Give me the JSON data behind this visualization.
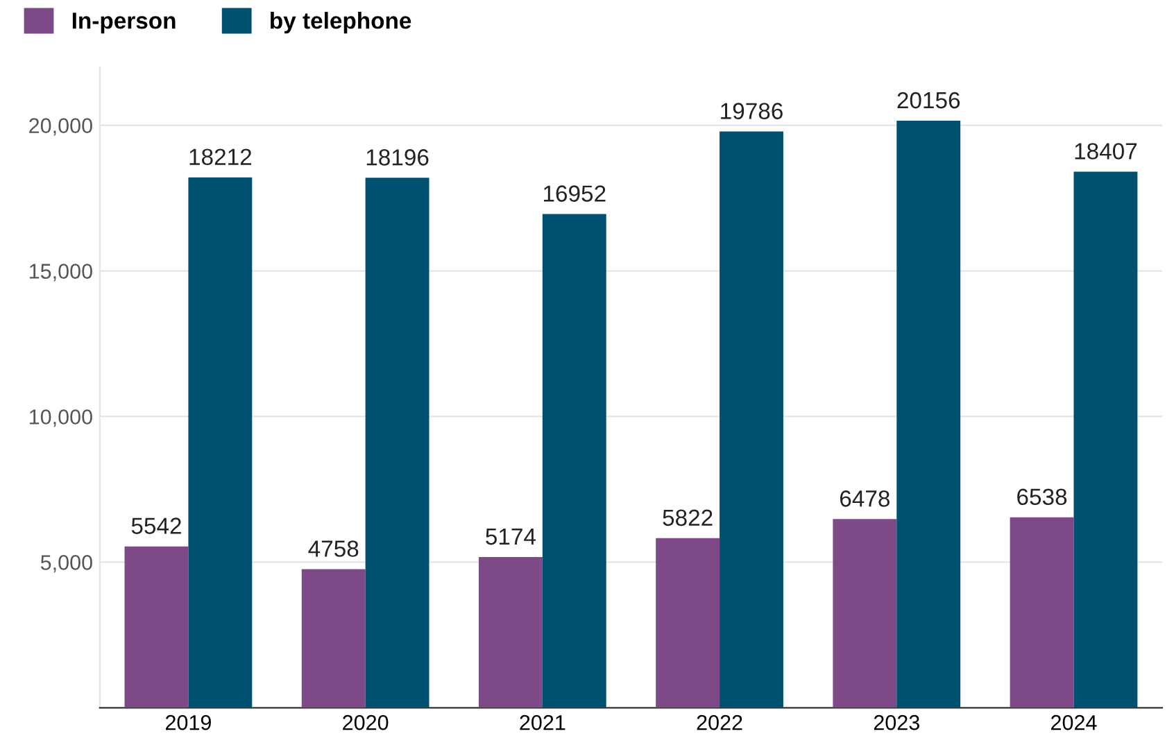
{
  "chart_data": {
    "type": "bar",
    "categories": [
      "2019",
      "2020",
      "2021",
      "2022",
      "2023",
      "2024"
    ],
    "series": [
      {
        "name": "In-person",
        "color": "#7d4a87",
        "values": [
          5542,
          4758,
          5174,
          5822,
          6478,
          6538
        ]
      },
      {
        "name": "by telephone",
        "color": "#005170",
        "values": [
          18212,
          18196,
          16952,
          19786,
          20156,
          18407
        ]
      }
    ],
    "ylim": [
      0,
      22000
    ],
    "yticks": [
      {
        "value": 5000,
        "label": "5,000"
      },
      {
        "value": 10000,
        "label": "10,000"
      },
      {
        "value": 15000,
        "label": "15,000"
      },
      {
        "value": 20000,
        "label": "20,000"
      }
    ],
    "grid": "y",
    "legend": "top left",
    "data_labels": true
  }
}
